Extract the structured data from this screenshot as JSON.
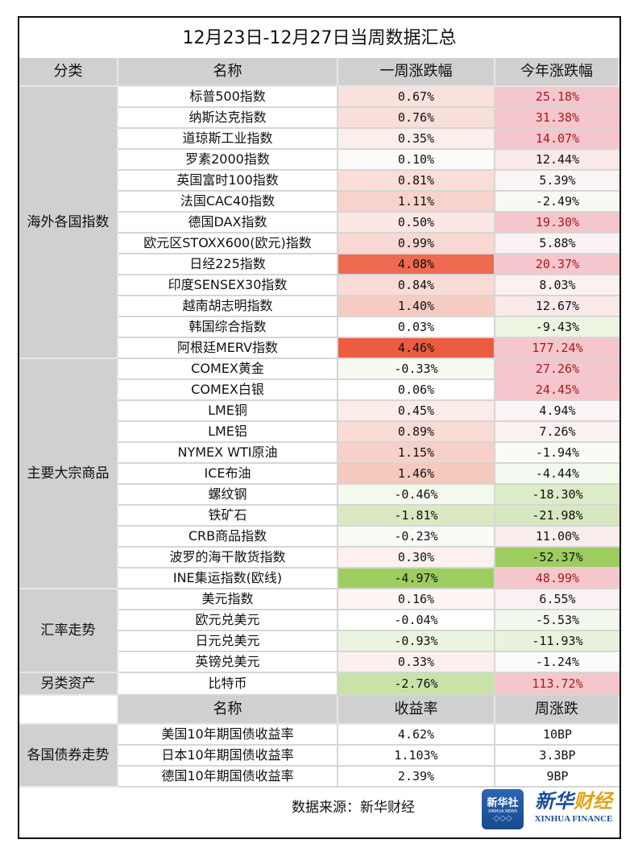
{
  "title": "12月23日-12月27日当周数据汇总",
  "header": {
    "category": "分类",
    "name": "名称",
    "week_change": "一周涨跌幅",
    "ytd_change": "今年涨跌幅"
  },
  "colors": {
    "header_bg": "#d0d0d0",
    "up_strong": "#ec5c41",
    "down_strong": "#9ecd5f",
    "ytd_up_text": "#a51c1c",
    "ytd_up_bg": "#f5c6cc"
  },
  "groups": [
    {
      "category": "海外各国指数",
      "rows": [
        {
          "name": "标普500指数",
          "week": "0.67%",
          "ytd": "25.18%",
          "week_bg": "#f9e1dc",
          "ytd_bg": "#f5c6cc",
          "ytd_red": true
        },
        {
          "name": "纳斯达克指数",
          "week": "0.76%",
          "ytd": "31.38%",
          "week_bg": "#f9dfd9",
          "ytd_bg": "#f5c6cc",
          "ytd_red": true
        },
        {
          "name": "道琼斯工业指数",
          "week": "0.35%",
          "ytd": "14.07%",
          "week_bg": "#fcefeb",
          "ytd_bg": "#f5c6cc",
          "ytd_red": true
        },
        {
          "name": "罗素2000指数",
          "week": "0.10%",
          "ytd": "12.44%",
          "week_bg": "#fefaf9",
          "ytd_bg": "#f9e9e9",
          "ytd_red": false
        },
        {
          "name": "英国富时100指数",
          "week": "0.81%",
          "ytd": "5.39%",
          "week_bg": "#f9ddd7",
          "ytd_bg": "#fbf4f4",
          "ytd_red": false
        },
        {
          "name": "法国CAC40指数",
          "week": "1.11%",
          "ytd": "-2.49%",
          "week_bg": "#f7d3cb",
          "ytd_bg": "#f7faf2",
          "ytd_red": false
        },
        {
          "name": "德国DAX指数",
          "week": "0.50%",
          "ytd": "19.30%",
          "week_bg": "#fbe8e4",
          "ytd_bg": "#f5c6cc",
          "ytd_red": true
        },
        {
          "name": "欧元区STOXX600(欧元)指数",
          "week": "0.99%",
          "ytd": "5.88%",
          "week_bg": "#f8d8d1",
          "ytd_bg": "#fbf3f3",
          "ytd_red": false
        },
        {
          "name": "日经225指数",
          "week": "4.08%",
          "ytd": "20.37%",
          "week_bg": "#ee6a50",
          "ytd_bg": "#f5c6cc",
          "ytd_red": true
        },
        {
          "name": "印度SENSEX30指数",
          "week": "0.84%",
          "ytd": "8.03%",
          "week_bg": "#f9dcd6",
          "ytd_bg": "#fbf1f1",
          "ytd_red": false
        },
        {
          "name": "越南胡志明指数",
          "week": "1.40%",
          "ytd": "12.67%",
          "week_bg": "#f6cbc1",
          "ytd_bg": "#f9e9e9",
          "ytd_red": false
        },
        {
          "name": "韩国综合指数",
          "week": "0.03%",
          "ytd": "-9.43%",
          "week_bg": "#ffffff",
          "ytd_bg": "#edf5e2",
          "ytd_red": false
        },
        {
          "name": "阿根廷MERV指数",
          "week": "4.46%",
          "ytd": "177.24%",
          "week_bg": "#ec5c41",
          "ytd_bg": "#f5c6cc",
          "ytd_red": true
        }
      ]
    },
    {
      "category": "主要大宗商品",
      "rows": [
        {
          "name": "COMEX黄金",
          "week": "-0.33%",
          "ytd": "27.26%",
          "week_bg": "#f6faf1",
          "ytd_bg": "#f5c6cc",
          "ytd_red": true
        },
        {
          "name": "COMEX白银",
          "week": "0.06%",
          "ytd": "24.45%",
          "week_bg": "#ffffff",
          "ytd_bg": "#f5c6cc",
          "ytd_red": true
        },
        {
          "name": "LME铜",
          "week": "0.45%",
          "ytd": "4.94%",
          "week_bg": "#fcece8",
          "ytd_bg": "#fbf5f5",
          "ytd_red": false
        },
        {
          "name": "LME铝",
          "week": "0.89%",
          "ytd": "7.26%",
          "week_bg": "#f9dbd5",
          "ytd_bg": "#fbf1f1",
          "ytd_red": false
        },
        {
          "name": "NYMEX WTI原油",
          "week": "1.15%",
          "ytd": "-1.94%",
          "week_bg": "#f7d1c9",
          "ytd_bg": "#f9fbf6",
          "ytd_red": false
        },
        {
          "name": "ICE布油",
          "week": "1.46%",
          "ytd": "-4.44%",
          "week_bg": "#f6c9be",
          "ytd_bg": "#f4f9ee",
          "ytd_red": false
        },
        {
          "name": "螺纹钢",
          "week": "-0.46%",
          "ytd": "-18.30%",
          "week_bg": "#f4f9ee",
          "ytd_bg": "#dcebc8",
          "ytd_red": false
        },
        {
          "name": "铁矿石",
          "week": "-1.81%",
          "ytd": "-21.98%",
          "week_bg": "#d9eac3",
          "ytd_bg": "#d7e8c0",
          "ytd_red": false
        },
        {
          "name": "CRB商品指数",
          "week": "-0.23%",
          "ytd": "11.00%",
          "week_bg": "#f9fbf6",
          "ytd_bg": "#faeded",
          "ytd_red": false
        },
        {
          "name": "波罗的海干散货指数",
          "week": "0.30%",
          "ytd": "-52.37%",
          "week_bg": "#fcf1ef",
          "ytd_bg": "#9ecd5f",
          "ytd_red": false
        },
        {
          "name": "INE集运指数(欧线)",
          "week": "-4.97%",
          "ytd": "48.99%",
          "week_bg": "#9ecd5f",
          "ytd_bg": "#f5c6cc",
          "ytd_red": true
        }
      ]
    },
    {
      "category": "汇率走势",
      "rows": [
        {
          "name": "美元指数",
          "week": "0.16%",
          "ytd": "6.55%",
          "week_bg": "#fdf6f4",
          "ytd_bg": "#fbf3f3",
          "ytd_red": false
        },
        {
          "name": "欧元兑美元",
          "week": "-0.04%",
          "ytd": "-5.53%",
          "week_bg": "#ffffff",
          "ytd_bg": "#f2f8eb",
          "ytd_red": false
        },
        {
          "name": "日元兑美元",
          "week": "-0.93%",
          "ytd": "-11.93%",
          "week_bg": "#ebf4e0",
          "ytd_bg": "#e9f3dc",
          "ytd_red": false
        },
        {
          "name": "英镑兑美元",
          "week": "0.33%",
          "ytd": "-1.24%",
          "week_bg": "#fcf0ee",
          "ytd_bg": "#fbfcf9",
          "ytd_red": false
        }
      ]
    },
    {
      "category": "另类资产",
      "rows": [
        {
          "name": "比特币",
          "week": "-2.76%",
          "ytd": "113.72%",
          "week_bg": "#c9e2a8",
          "ytd_bg": "#f5c6cc",
          "ytd_red": true
        }
      ]
    }
  ],
  "bonds": {
    "header": {
      "name": "名称",
      "yield": "收益率",
      "weekly": "周涨跌"
    },
    "category": "各国债券走势",
    "rows": [
      {
        "name": "美国10年期国债收益率",
        "yield": "4.62%",
        "weekly": "10BP"
      },
      {
        "name": "日本10年期国债收益率",
        "yield": "1.103%",
        "weekly": "3.3BP"
      },
      {
        "name": "德国10年期国债收益率",
        "yield": "2.39%",
        "weekly": "9BP"
      }
    ]
  },
  "footer": {
    "source": "数据来源：新华财经",
    "logo_xinhua_cn": "新华社",
    "logo_xinhua_en": "XINHUA NEWS",
    "logo_finance_cn_1": "新华",
    "logo_finance_cn_2": "财经",
    "logo_finance_en": "XINHUA FINANCE"
  }
}
